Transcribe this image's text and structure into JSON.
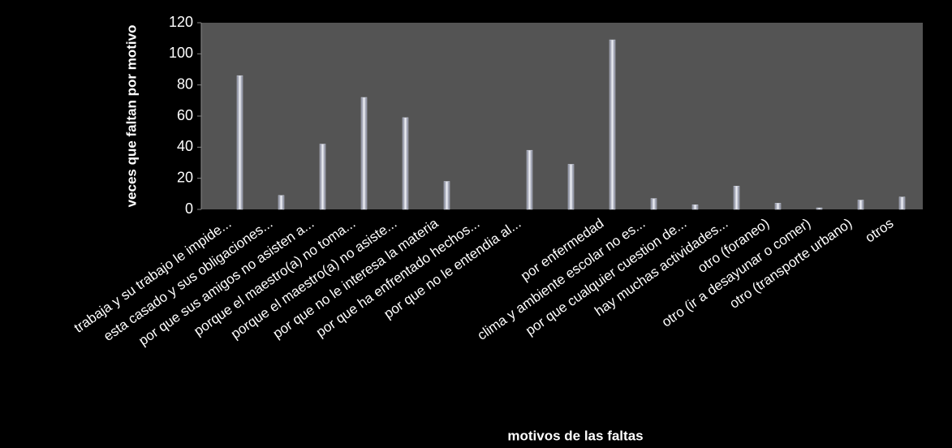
{
  "chart_data": {
    "type": "bar",
    "x_label": "motivos de las faltas",
    "y_label": "veces que faltan por motivo",
    "categories": [
      "trabaja y su trabajo le impide...",
      "esta casado y sus obligaciones...",
      "por que sus amigos no asisten a...",
      "porque el maestro(a) no toma...",
      "porque el maestro(a) no asiste...",
      "por que no le interesa la materia",
      "por que ha enfrentado hechos...",
      "por que no le entendia al...",
      null,
      "por enfermedad",
      "clima y ambiente escolar no es...",
      "por que cualquier cuestion de...",
      "hay muchas actividades...",
      "otro (foraneo)",
      "otro (ir a desayunar o comer)",
      "otro (transporte urbano)",
      "otros"
    ],
    "values": [
      86,
      9,
      42,
      72,
      59,
      18,
      0,
      38,
      29,
      109,
      7,
      3,
      15,
      4,
      1,
      6,
      8
    ],
    "color": "#c8ccd8",
    "ylim": [
      0,
      120
    ],
    "yticks": [
      0,
      20,
      40,
      60,
      80,
      100,
      120
    ],
    "grid": false
  }
}
